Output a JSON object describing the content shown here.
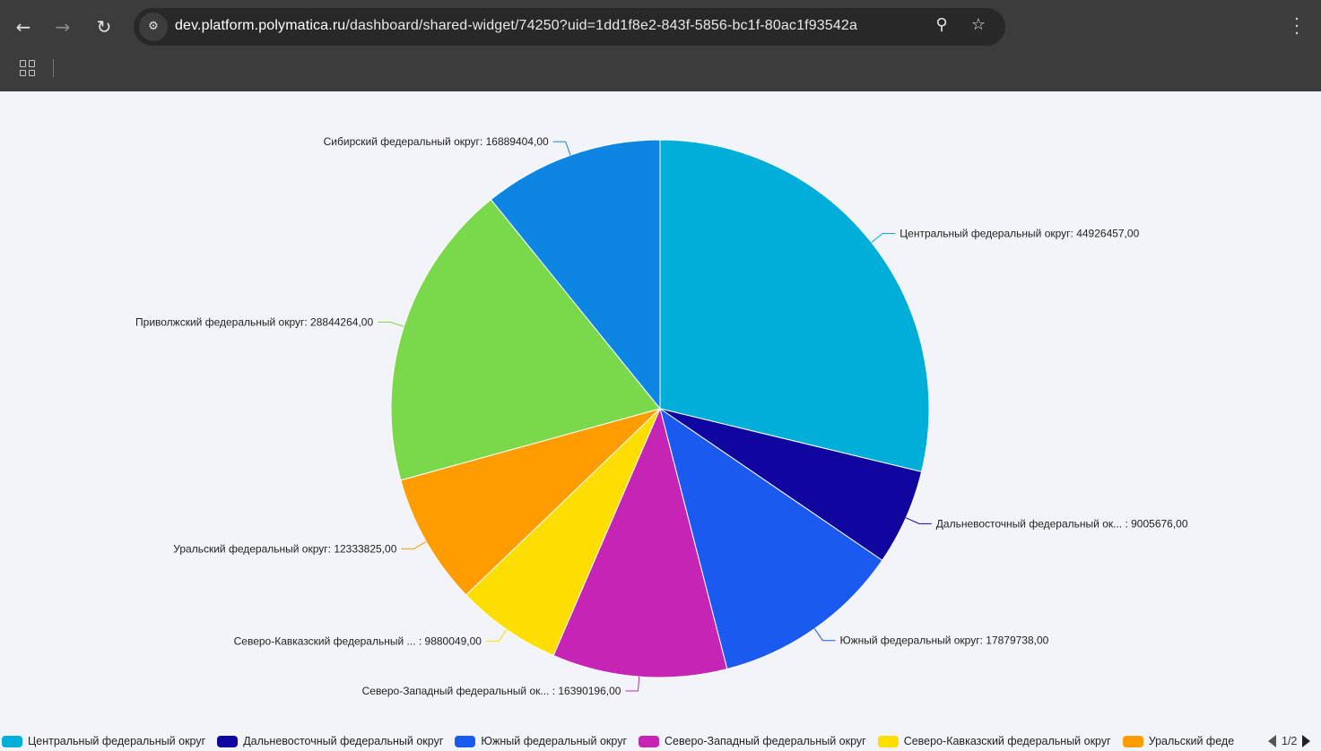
{
  "browser": {
    "url_host": "dev.platform.polymatica.ru",
    "url_path": "/dashboard/shared-widget/74250?uid=1dd1f8e2-843f-5856-bc1f-80ac1f93542a",
    "icons": [
      "back-icon",
      "forward-icon",
      "reload-icon",
      "site-settings-icon",
      "zoom-icon",
      "star-icon",
      "menu-icon",
      "apps-icon"
    ]
  },
  "chart_data": {
    "type": "pie",
    "start_angle": "top",
    "direction": "clockwise",
    "categories": [
      "Центральный федеральный округ",
      "Дальневосточный федеральный округ",
      "Южный федеральный округ",
      "Северо-Западный федеральный округ",
      "Северо-Кавказский федеральный округ",
      "Уральский федеральный округ",
      "Приволжский федеральный округ",
      "Сибирский федеральный округ"
    ],
    "values": [
      44926457,
      9005676,
      17879738,
      16390196,
      9880049,
      12333825,
      28844264,
      16889404
    ],
    "data_labels": [
      "Центральный федеральный округ: 44926457,00",
      "Дальневосточный федеральный ок... : 9005676,00",
      "Южный федеральный округ: 17879738,00",
      "Северо-Западный федеральный ок... : 16390196,00",
      "Северо-Кавказский федеральный ... : 9880049,00",
      "Уральский федеральный округ: 12333825,00",
      "Приволжский федеральный округ: 28844264,00",
      "Сибирский федеральный округ: 16889404,00"
    ],
    "colors": [
      "#00aeda",
      "#1105a0",
      "#1a5af0",
      "#c524b5",
      "#fdde00",
      "#ff9c00",
      "#7ad94b",
      "#0d86e3"
    ],
    "legend": {
      "placement": "bottom",
      "visible_items": [
        "Центральный федеральный округ",
        "Дальневосточный федеральный округ",
        "Южный федеральный округ",
        "Северо-Западный федеральный округ",
        "Северо-Кавказский федеральный округ",
        "Уральский феде"
      ],
      "page": "1/2"
    }
  }
}
